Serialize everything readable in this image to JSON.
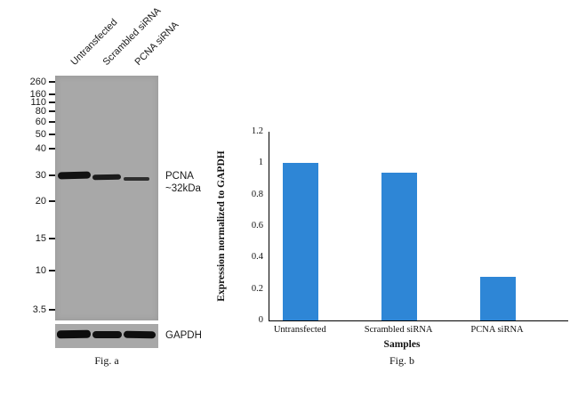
{
  "fig_a": {
    "lane_labels": [
      "Untransfected",
      "Scrambled siRNA",
      "PCNA siRNA"
    ],
    "mw_markers": [
      "260",
      "160",
      "110",
      "80",
      "60",
      "50",
      "40",
      "30",
      "20",
      "15",
      "10",
      "3.5"
    ],
    "target_band_label_line1": "PCNA",
    "target_band_label_line2": "~32kDa",
    "loading_control_label": "GAPDH",
    "pcna_band_intensities": [
      "strong",
      "medium",
      "weak"
    ],
    "gapdh_band_intensities": [
      "strong",
      "strong",
      "strong"
    ],
    "caption": "Fig. a",
    "blot_background_color": "#a8a8a8",
    "band_color": "#121212"
  },
  "chart_data": {
    "type": "bar",
    "categories": [
      "Untransfected",
      "Scrambled siRNA",
      "PCNA siRNA"
    ],
    "values": [
      1.0,
      0.94,
      0.28
    ],
    "title": "",
    "xlabel": "Samples",
    "ylabel": "Expression normalized to GAPDH",
    "ylim": [
      0,
      1.2
    ],
    "yticks": [
      0,
      0.2,
      0.4,
      0.6,
      0.8,
      1,
      1.2
    ],
    "bar_color": "#2e86d6",
    "grid": false,
    "legend_position": "none",
    "caption": "Fig. b"
  }
}
